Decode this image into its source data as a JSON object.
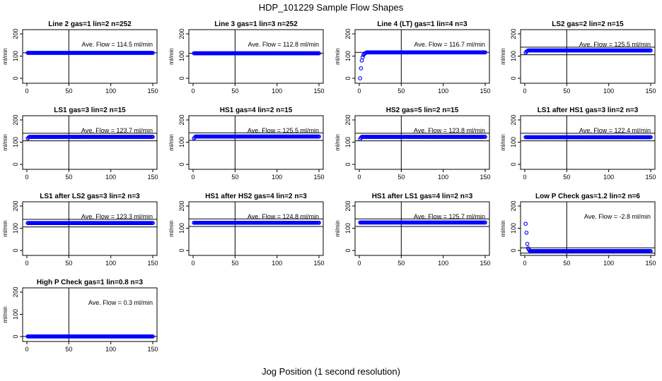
{
  "figure": {
    "title": "HDP_101229  Sample Flow Shapes",
    "xlabel": "Jog Position (1 second resolution)"
  },
  "colors": {
    "points": "#0000ff",
    "lines": "#000000",
    "frame": "#000000"
  },
  "chart_data": [
    {
      "type": "scatter",
      "title": "Line 2 gas=1 lin=2 n=252",
      "ylabel": "ml/min",
      "xlim": [
        0,
        150
      ],
      "ylim": [
        0,
        200
      ],
      "xticks": [
        0,
        50,
        100,
        150
      ],
      "yticks": [
        0,
        100,
        200
      ],
      "vline": 50,
      "hlines": [
        114.5
      ],
      "annotation": "Ave. Flow =  114.5  ml/min",
      "series": [
        {
          "shape": "flat",
          "x_range": [
            0,
            150
          ],
          "value": 114.5
        }
      ]
    },
    {
      "type": "scatter",
      "title": "Line 3 gas=1 lin=3 n=252",
      "ylabel": "ml/min",
      "xlim": [
        0,
        150
      ],
      "ylim": [
        0,
        200
      ],
      "xticks": [
        0,
        50,
        100,
        150
      ],
      "yticks": [
        0,
        100,
        200
      ],
      "vline": 50,
      "hlines": [
        112.8
      ],
      "annotation": "Ave. Flow =  112.8  ml/min",
      "series": [
        {
          "shape": "flat",
          "x_range": [
            0,
            150
          ],
          "value": 112.8
        }
      ]
    },
    {
      "type": "scatter",
      "title": "Line 4 (LT) gas=1 lin=4 n=3",
      "ylabel": "ml/min",
      "xlim": [
        0,
        150
      ],
      "ylim": [
        0,
        200
      ],
      "xticks": [
        0,
        50,
        100,
        150
      ],
      "yticks": [
        0,
        100,
        200
      ],
      "vline": 50,
      "hlines": [
        116.7
      ],
      "annotation": "Ave. Flow =  116.7  ml/min",
      "series": [
        {
          "shape": "ramp",
          "x_range": [
            0,
            150
          ],
          "value": 116.7,
          "ramp_points": [
            [
              1,
              0
            ],
            [
              2,
              45
            ],
            [
              3,
              80
            ],
            [
              4,
              95
            ],
            [
              5,
              105
            ],
            [
              6,
              110
            ],
            [
              7,
              113
            ],
            [
              8,
              115
            ]
          ]
        }
      ]
    },
    {
      "type": "scatter",
      "title": "LS2 gas=2 lin=2 n=15",
      "ylabel": "ml/min",
      "xlim": [
        0,
        150
      ],
      "ylim": [
        0,
        200
      ],
      "xticks": [
        0,
        50,
        100,
        150
      ],
      "yticks": [
        0,
        100,
        200
      ],
      "vline": 50,
      "hlines": [
        106,
        140
      ],
      "annotation": "Ave. Flow =  125.5  ml/min",
      "series": [
        {
          "shape": "ramp",
          "x_range": [
            0,
            150
          ],
          "value": 125.5,
          "ramp_points": [
            [
              1,
              115
            ],
            [
              2,
              120
            ],
            [
              3,
              123
            ]
          ]
        }
      ]
    },
    {
      "type": "scatter",
      "title": "LS1 gas=3 lin=2 n=15",
      "ylabel": "ml/min",
      "xlim": [
        0,
        150
      ],
      "ylim": [
        0,
        200
      ],
      "xticks": [
        0,
        50,
        100,
        150
      ],
      "yticks": [
        0,
        100,
        200
      ],
      "vline": 50,
      "hlines": [
        106,
        140
      ],
      "annotation": "Ave. Flow =  123.7  ml/min",
      "series": [
        {
          "shape": "ramp",
          "x_range": [
            0,
            150
          ],
          "value": 123.7,
          "ramp_points": [
            [
              1,
              117
            ],
            [
              2,
              121
            ]
          ]
        }
      ]
    },
    {
      "type": "scatter",
      "title": "HS1 gas=4 lin=2 n=15",
      "ylabel": "ml/min",
      "xlim": [
        0,
        150
      ],
      "ylim": [
        0,
        200
      ],
      "xticks": [
        0,
        50,
        100,
        150
      ],
      "yticks": [
        0,
        100,
        200
      ],
      "vline": 50,
      "hlines": [
        108,
        142
      ],
      "annotation": "Ave. Flow =  125.5  ml/min",
      "series": [
        {
          "shape": "ramp",
          "x_range": [
            0,
            150
          ],
          "value": 125.5,
          "ramp_points": [
            [
              1,
              117
            ],
            [
              2,
              121
            ]
          ]
        }
      ]
    },
    {
      "type": "scatter",
      "title": "HS2 gas=5 lin=2 n=15",
      "ylabel": "ml/min",
      "xlim": [
        0,
        150
      ],
      "ylim": [
        0,
        200
      ],
      "xticks": [
        0,
        50,
        100,
        150
      ],
      "yticks": [
        0,
        100,
        200
      ],
      "vline": 50,
      "hlines": [
        106,
        140
      ],
      "annotation": "Ave. Flow =  123.8  ml/min",
      "series": [
        {
          "shape": "ramp",
          "x_range": [
            0,
            150
          ],
          "value": 123.8,
          "ramp_points": [
            [
              1,
              114
            ],
            [
              2,
              120
            ]
          ]
        }
      ]
    },
    {
      "type": "scatter",
      "title": "LS1 after HS1 gas=3 lin=2 n=3",
      "ylabel": "ml/min",
      "xlim": [
        0,
        150
      ],
      "ylim": [
        0,
        200
      ],
      "xticks": [
        0,
        50,
        100,
        150
      ],
      "yticks": [
        0,
        100,
        200
      ],
      "vline": 50,
      "hlines": [
        106,
        140
      ],
      "annotation": "Ave. Flow =  122.4  ml/min",
      "series": [
        {
          "shape": "flat",
          "x_range": [
            0,
            150
          ],
          "value": 122.4
        }
      ]
    },
    {
      "type": "scatter",
      "title": "LS1 after LS2 gas=3 lin=2 n=3",
      "ylabel": "ml/min",
      "xlim": [
        0,
        150
      ],
      "ylim": [
        0,
        200
      ],
      "xticks": [
        0,
        50,
        100,
        150
      ],
      "yticks": [
        0,
        100,
        200
      ],
      "vline": 50,
      "hlines": [
        106,
        140
      ],
      "annotation": "Ave. Flow =  123.3  ml/min",
      "series": [
        {
          "shape": "flat",
          "x_range": [
            0,
            150
          ],
          "value": 123.3
        }
      ]
    },
    {
      "type": "scatter",
      "title": "HS1 after HS2 gas=4 lin=2 n=3",
      "ylabel": "ml/min",
      "xlim": [
        0,
        150
      ],
      "ylim": [
        0,
        200
      ],
      "xticks": [
        0,
        50,
        100,
        150
      ],
      "yticks": [
        0,
        100,
        200
      ],
      "vline": 50,
      "hlines": [
        108,
        142
      ],
      "annotation": "Ave. Flow =  124.8  ml/min",
      "series": [
        {
          "shape": "flat",
          "x_range": [
            0,
            150
          ],
          "value": 124.8
        }
      ]
    },
    {
      "type": "scatter",
      "title": "HS1 after LS1 gas=4 lin=2 n=3",
      "ylabel": "ml/min",
      "xlim": [
        0,
        150
      ],
      "ylim": [
        0,
        200
      ],
      "xticks": [
        0,
        50,
        100,
        150
      ],
      "yticks": [
        0,
        100,
        200
      ],
      "vline": 50,
      "hlines": [
        108,
        142
      ],
      "annotation": "Ave. Flow =  125.7  ml/min",
      "series": [
        {
          "shape": "flat",
          "x_range": [
            0,
            150
          ],
          "value": 125.7
        }
      ]
    },
    {
      "type": "scatter",
      "title": "Low P Check gas=1.2 lin=2 n=6",
      "ylabel": "ml/min",
      "xlim": [
        0,
        150
      ],
      "ylim": [
        0,
        200
      ],
      "xticks": [
        0,
        50,
        100,
        150
      ],
      "yticks": [
        0,
        100,
        200
      ],
      "vline": 50,
      "hlines": [
        -12,
        12
      ],
      "annotation": "Ave. Flow =  -2.8  ml/min",
      "series": [
        {
          "shape": "decay",
          "x_range": [
            0,
            150
          ],
          "value": -2.8,
          "decay_points": [
            [
              1,
              120
            ],
            [
              2,
              80
            ],
            [
              3,
              30
            ],
            [
              4,
              10
            ],
            [
              5,
              3
            ]
          ]
        }
      ]
    },
    {
      "type": "scatter",
      "title": "High P Check gas=1 lin=0.8 n=3",
      "ylabel": "ml/min",
      "xlim": [
        0,
        150
      ],
      "ylim": [
        0,
        200
      ],
      "xticks": [
        0,
        50,
        100,
        150
      ],
      "yticks": [
        0,
        100,
        200
      ],
      "vline": 50,
      "hlines": [
        0.3
      ],
      "annotation": "Ave. Flow =  0.3  ml/min",
      "series": [
        {
          "shape": "flat",
          "x_range": [
            0,
            150
          ],
          "value": 0.3
        }
      ]
    }
  ]
}
